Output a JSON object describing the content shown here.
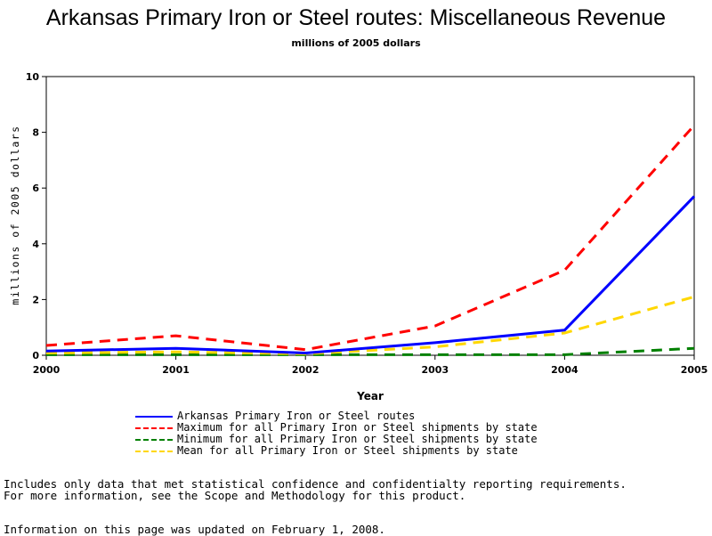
{
  "chart_data": {
    "type": "line",
    "title": "Arkansas Primary Iron or Steel routes: Miscellaneous Revenue",
    "subtitle": "millions of 2005 dollars",
    "xlabel": "Year",
    "ylabel": "millions of 2005 dollars",
    "x": [
      2000,
      2001,
      2002,
      2003,
      2004,
      2005
    ],
    "xlim": [
      2000,
      2005
    ],
    "ylim": [
      0,
      10
    ],
    "yticks": [
      0,
      2,
      4,
      6,
      8,
      10
    ],
    "grid": false,
    "legend_position": "bottom",
    "series": [
      {
        "name": "Arkansas Primary Iron or Steel routes",
        "values": [
          0.15,
          0.25,
          0.08,
          0.45,
          0.9,
          5.7
        ],
        "color": "#0000ff",
        "style": "solid"
      },
      {
        "name": "Maximum for all Primary Iron or Steel shipments by state",
        "values": [
          0.35,
          0.7,
          0.2,
          1.05,
          3.05,
          8.25
        ],
        "color": "#ff0000",
        "style": "dashed"
      },
      {
        "name": "Minimum for all Primary Iron or Steel shipments by state",
        "values": [
          0.02,
          0.02,
          0.02,
          0.02,
          0.02,
          0.25
        ],
        "color": "#008000",
        "style": "dashed"
      },
      {
        "name": "Mean for all Primary Iron or Steel shipments by state",
        "values": [
          0.08,
          0.12,
          0.05,
          0.3,
          0.8,
          2.1
        ],
        "color": "#ffd700",
        "style": "dashed"
      }
    ]
  },
  "notes": {
    "line1": "Includes only data that met statistical confidence and confidentialty reporting requirements.",
    "line2": "For more information, see the Scope and Methodology for this product.",
    "updated": "Information on this page was updated on February 1, 2008."
  }
}
